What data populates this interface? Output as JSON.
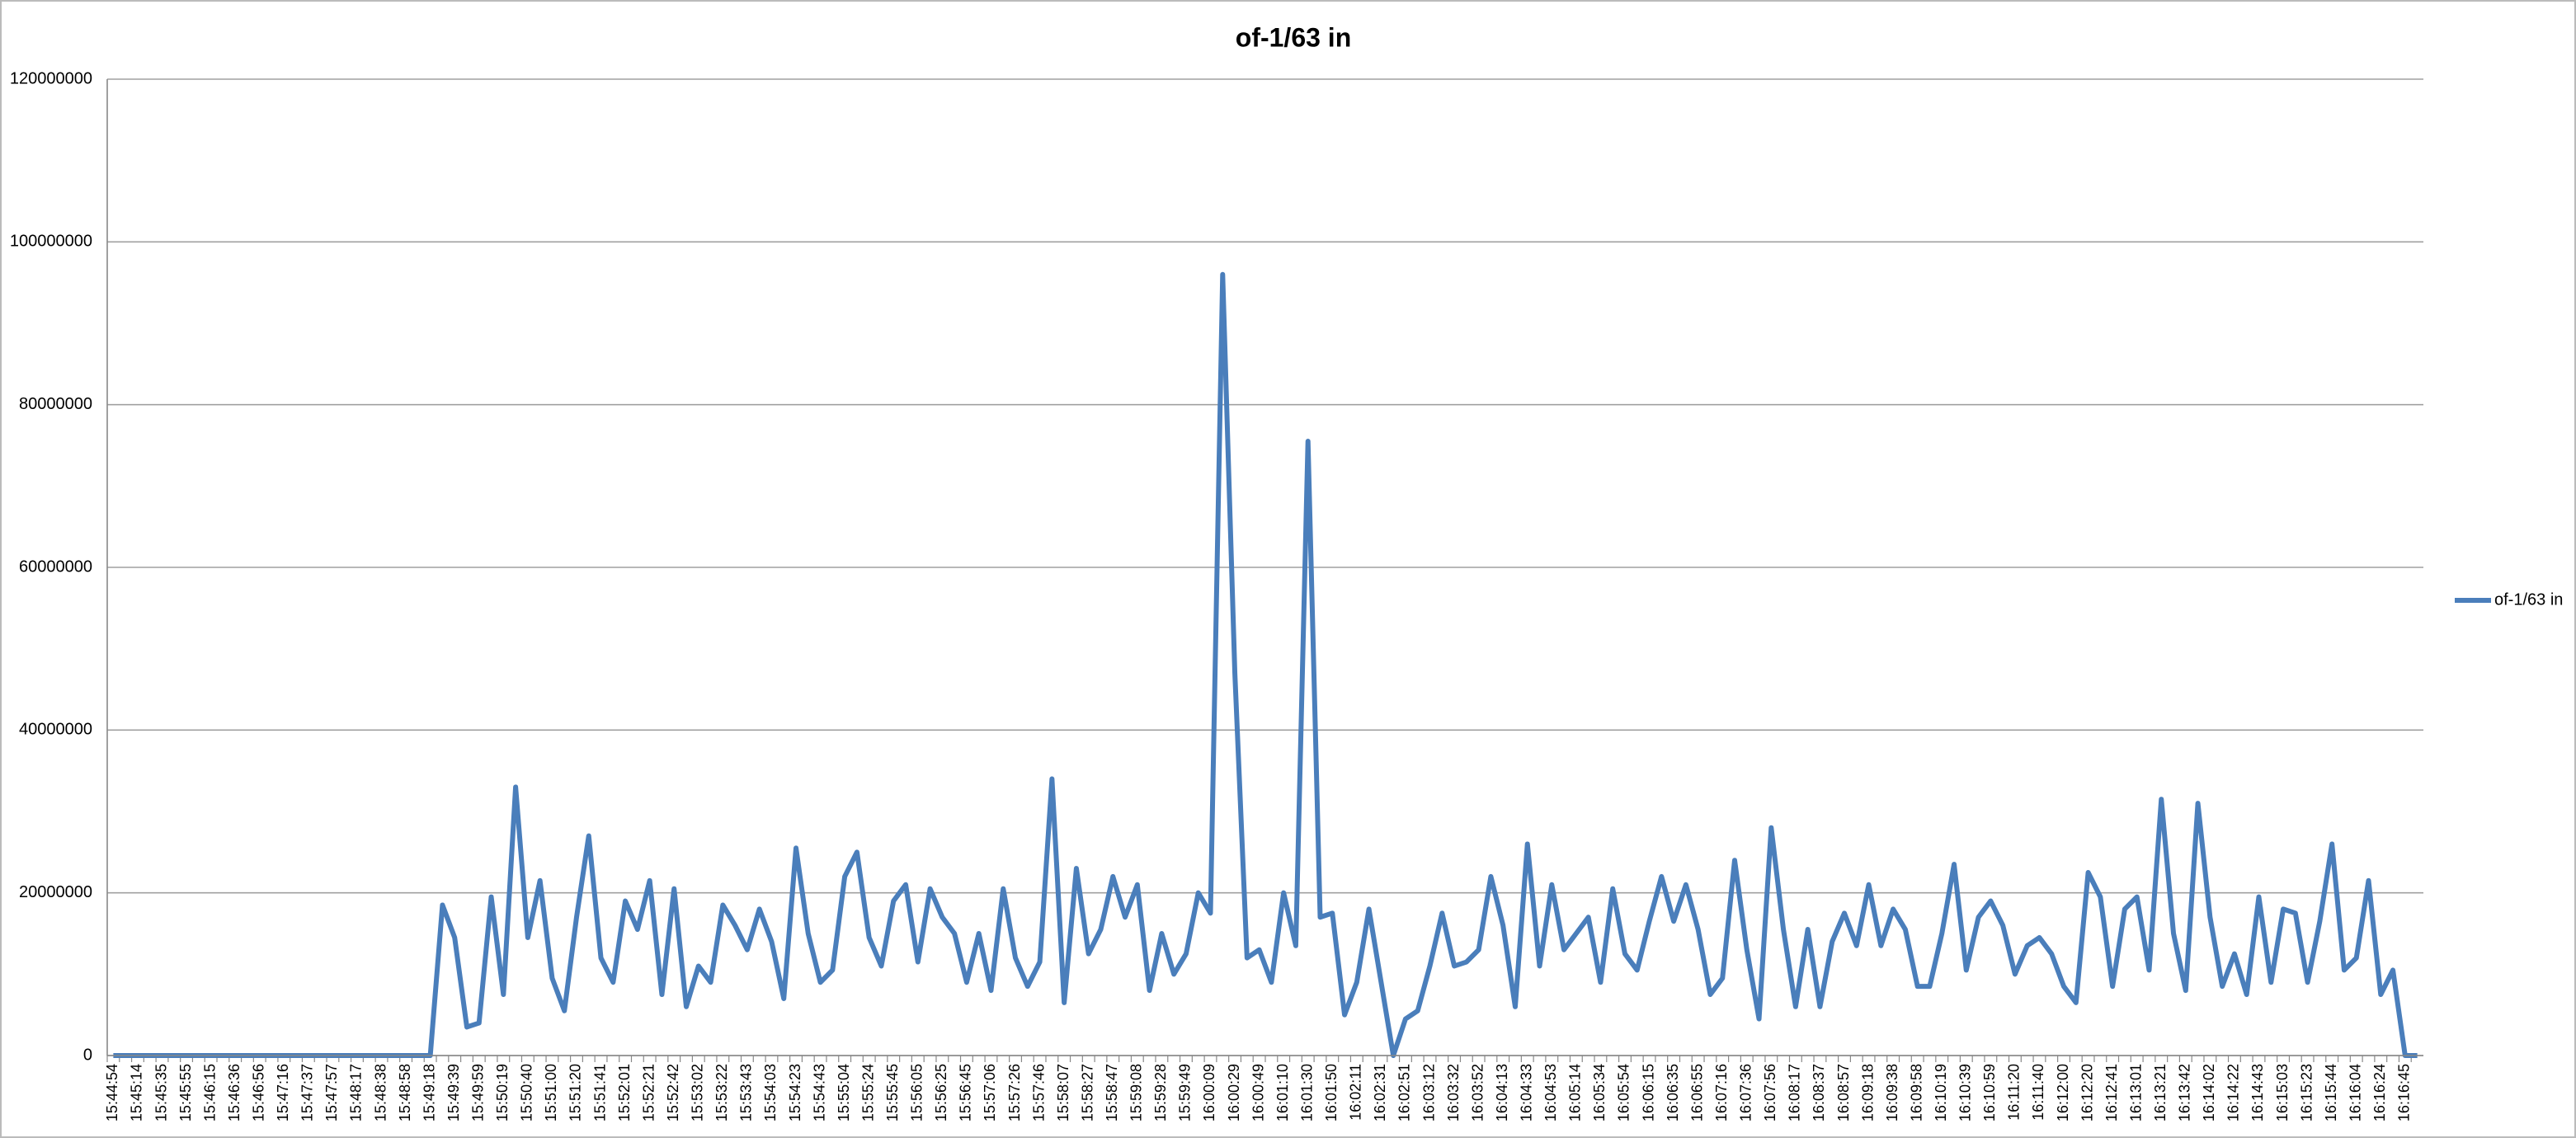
{
  "chart_data": {
    "type": "line",
    "title": "of-1/63 in",
    "categories": [
      "15:44:54",
      null,
      "15:45:14",
      null,
      "15:45:35",
      null,
      "15:45:55",
      null,
      "15:46:15",
      null,
      "15:46:36",
      null,
      "15:46:56",
      null,
      "15:47:16",
      null,
      "15:47:37",
      null,
      "15:47:57",
      null,
      "15:48:17",
      null,
      "15:48:38",
      null,
      "15:48:58",
      null,
      "15:49:18",
      null,
      "15:49:39",
      null,
      "15:49:59",
      null,
      "15:50:19",
      null,
      "15:50:40",
      null,
      "15:51:00",
      null,
      "15:51:20",
      null,
      "15:51:41",
      null,
      "15:52:01",
      null,
      "15:52:21",
      null,
      "15:52:42",
      null,
      "15:53:02",
      null,
      "15:53:22",
      null,
      "15:53:43",
      null,
      "15:54:03",
      null,
      "15:54:23",
      null,
      "15:54:43",
      null,
      "15:55:04",
      null,
      "15:55:24",
      null,
      "15:55:45",
      null,
      "15:56:05",
      null,
      "15:56:25",
      null,
      "15:56:45",
      null,
      "15:57:06",
      null,
      "15:57:26",
      null,
      "15:57:46",
      null,
      "15:58:07",
      null,
      "15:58:27",
      null,
      "15:58:47",
      null,
      "15:59:08",
      null,
      "15:59:28",
      null,
      "15:59:49",
      null,
      "16:00:09",
      null,
      "16:00:29",
      null,
      "16:00:49",
      null,
      "16:01:10",
      null,
      "16:01:30",
      null,
      "16:01:50",
      null,
      "16:02:11",
      null,
      "16:02:31",
      null,
      "16:02:51",
      null,
      "16:03:12",
      null,
      "16:03:32",
      null,
      "16:03:52",
      null,
      "16:04:13",
      null,
      "16:04:33",
      null,
      "16:04:53",
      null,
      "16:05:14",
      null,
      "16:05:34",
      null,
      "16:05:54",
      null,
      "16:06:15",
      null,
      "16:06:35",
      null,
      "16:06:55",
      null,
      "16:07:16",
      null,
      "16:07:36",
      null,
      "16:07:56",
      null,
      "16:08:17",
      null,
      "16:08:37",
      null,
      "16:08:57",
      null,
      "16:09:18",
      null,
      "16:09:38",
      null,
      "16:09:58",
      null,
      "16:10:19",
      null,
      "16:10:39",
      null,
      "16:10:59",
      null,
      "16:11:20",
      null,
      "16:11:40",
      null,
      "16:12:00",
      null,
      "16:12:20",
      null,
      "16:12:41",
      null,
      "16:13:01",
      null,
      "16:13:21",
      null,
      "16:13:42",
      null,
      "16:14:02",
      null,
      "16:14:22",
      null,
      "16:14:43",
      null,
      "16:15:03",
      null,
      "16:15:23",
      null,
      "16:15:44",
      null,
      "16:16:04",
      null,
      "16:16:24",
      null,
      "16:16:45",
      null
    ],
    "series": [
      {
        "name": "of-1/63 in",
        "color": "#4a7ebb",
        "values": [
          0,
          0,
          0,
          0,
          0,
          0,
          0,
          0,
          0,
          0,
          0,
          0,
          0,
          0,
          0,
          0,
          0,
          0,
          0,
          0,
          0,
          0,
          0,
          0,
          0,
          0,
          0,
          18500000,
          14500000,
          3500000,
          4000000,
          19500000,
          7500000,
          33000000,
          14500000,
          21500000,
          9500000,
          5500000,
          17000000,
          27000000,
          12000000,
          9000000,
          19000000,
          15500000,
          21500000,
          7500000,
          20500000,
          6000000,
          11000000,
          9000000,
          18500000,
          16000000,
          13000000,
          18000000,
          14000000,
          7000000,
          25500000,
          15000000,
          9000000,
          10500000,
          22000000,
          25000000,
          14500000,
          11000000,
          19000000,
          21000000,
          11500000,
          20500000,
          17000000,
          15000000,
          9000000,
          15000000,
          8000000,
          20500000,
          12000000,
          8500000,
          11500000,
          34000000,
          6500000,
          23000000,
          12500000,
          15500000,
          22000000,
          17000000,
          21000000,
          8000000,
          15000000,
          10000000,
          12500000,
          20000000,
          17500000,
          96000000,
          47000000,
          12000000,
          13000000,
          9000000,
          20000000,
          13500000,
          75500000,
          17000000,
          17500000,
          5000000,
          9000000,
          18000000,
          9000000,
          0,
          4500000,
          5500000,
          11000000,
          17500000,
          11000000,
          11500000,
          13000000,
          22000000,
          16000000,
          6000000,
          26000000,
          11000000,
          21000000,
          13000000,
          15000000,
          17000000,
          9000000,
          20500000,
          12500000,
          10500000,
          16500000,
          22000000,
          16500000,
          21000000,
          15500000,
          7500000,
          9500000,
          24000000,
          13000000,
          4500000,
          28000000,
          15500000,
          6000000,
          15500000,
          6000000,
          14000000,
          17500000,
          13500000,
          21000000,
          13500000,
          18000000,
          15500000,
          8500000,
          8500000,
          15000000,
          23500000,
          10500000,
          17000000,
          19000000,
          16000000,
          10000000,
          13500000,
          14500000,
          12500000,
          8500000,
          6500000,
          22500000,
          19500000,
          8500000,
          18000000,
          19500000,
          10500000,
          31500000,
          15000000,
          8000000,
          31000000,
          17000000,
          8500000,
          12500000,
          7500000,
          19500000,
          9000000,
          18000000,
          17500000,
          9000000,
          16500000,
          26000000,
          10500000,
          12000000,
          21500000,
          7500000,
          10500000,
          0,
          0
        ]
      }
    ],
    "ylim": [
      0,
      120000000
    ],
    "yticks": [
      0,
      20000000,
      40000000,
      60000000,
      80000000,
      100000000,
      120000000
    ],
    "grid": true,
    "legend": "right"
  }
}
